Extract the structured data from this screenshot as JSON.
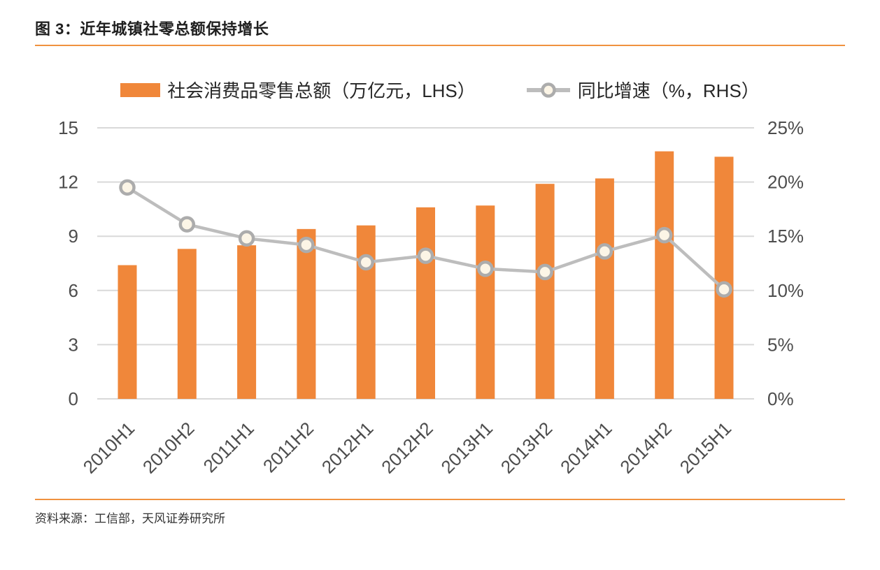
{
  "figure": {
    "title": "图 3：近年城镇社零总额保持增长",
    "source": "资料来源：工信部，天风证券研究所"
  },
  "legend": {
    "bar_label": "社会消费品零售总额（万亿元，LHS）",
    "line_label": "同比增速（%，RHS）"
  },
  "colors": {
    "bar": "#f0873a",
    "line": "#bdbdbd",
    "marker_stroke": "#acacac",
    "marker_fill": "#fcf5e6",
    "gridline": "#d9d9d9",
    "axis_text": "#4d4d4d",
    "rule": "#f0923f"
  },
  "chart_data": {
    "type": "bar",
    "subtype": "bar+line combo, dual axis",
    "title": "近年城镇社零总额保持增长",
    "categories": [
      "2010H1",
      "2010H2",
      "2011H1",
      "2011H2",
      "2012H1",
      "2012H2",
      "2013H1",
      "2013H2",
      "2014H1",
      "2014H2",
      "2015H1"
    ],
    "series": [
      {
        "name": "社会消费品零售总额（万亿元，LHS）",
        "type": "bar",
        "axis": "left",
        "values": [
          7.4,
          8.3,
          8.5,
          9.4,
          9.6,
          10.6,
          10.7,
          11.9,
          12.2,
          13.7,
          13.4
        ]
      },
      {
        "name": "同比增速（%，RHS）",
        "type": "line",
        "axis": "right",
        "values": [
          19.5,
          16.1,
          14.8,
          14.2,
          12.6,
          13.2,
          12.0,
          11.7,
          13.6,
          15.1,
          10.1
        ]
      }
    ],
    "left_axis": {
      "label": "万亿元",
      "ticks": [
        0,
        3,
        6,
        9,
        12,
        15
      ],
      "range": [
        0,
        15
      ]
    },
    "right_axis": {
      "label": "%",
      "tick_labels": [
        "0%",
        "5%",
        "10%",
        "15%",
        "20%",
        "25%"
      ],
      "ticks": [
        0,
        5,
        10,
        15,
        20,
        25
      ],
      "range": [
        0,
        25
      ]
    },
    "grid": "horizontal only",
    "legend_position": "top center",
    "x_tick_rotation": 45
  }
}
